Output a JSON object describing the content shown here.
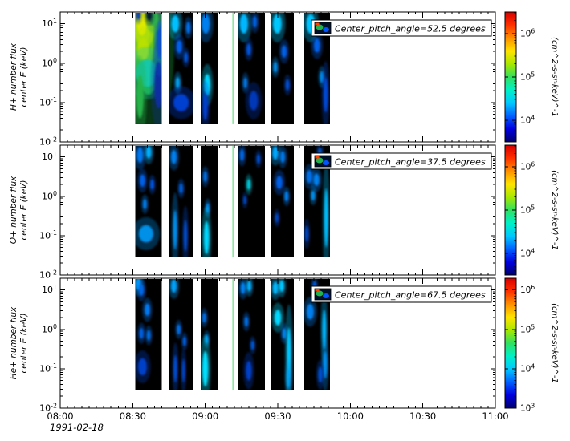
{
  "figure": {
    "background": "#ffffff",
    "date_label": "1991-02-18",
    "x_axis": {
      "range_minutes": [
        0,
        180
      ],
      "major_ticks": [
        {
          "t": 0,
          "label": "08:00"
        },
        {
          "t": 30,
          "label": "08:30"
        },
        {
          "t": 60,
          "label": "09:00"
        },
        {
          "t": 90,
          "label": "09:30"
        },
        {
          "t": 120,
          "label": "10:00"
        },
        {
          "t": 150,
          "label": "10:30"
        },
        {
          "t": 180,
          "label": "11:00"
        }
      ],
      "minor_tick_minutes": 3
    },
    "colorbar_gradient": [
      "#00006a",
      "#0000e0",
      "#0060ff",
      "#00c8ff",
      "#00f0c8",
      "#30e060",
      "#a8e800",
      "#ffe400",
      "#ff9000",
      "#ff3000",
      "#d80000"
    ],
    "legend_icon": {
      "bg": "#001028",
      "spots": [
        "#22b14c",
        "#0055ff",
        "#ff4000"
      ]
    },
    "frame_color": "#000000",
    "segment_log_energy_range": [
      -1.55,
      1.28
    ],
    "sliver_color": "#8ee6a1"
  },
  "chart_data": [
    {
      "type": "heatmap",
      "species": "H+",
      "ylabel_lines": [
        "H+ number flux",
        "center E (keV)"
      ],
      "legend_label": "Center_pitch_angle=52.5 degrees",
      "y_log_range": [
        -2,
        1.3
      ],
      "y_tick_exponents": [
        1,
        0,
        -1,
        -2
      ],
      "colorbar": {
        "label": "(cm^2-s-sr-keV)^-1",
        "tick_exponents": [
          6,
          5,
          4
        ],
        "log_range": [
          3.5,
          6.5
        ]
      },
      "segments_minutes": [
        [
          31,
          42
        ],
        [
          45.2,
          54.8
        ],
        [
          58.1,
          65.4
        ],
        [
          73.7,
          84.7
        ],
        [
          87.3,
          96.6
        ],
        [
          100.9,
          111.6
        ]
      ],
      "slivers_minutes": [
        [
          71.2,
          71.8
        ]
      ],
      "blobs": [
        {
          "t": 36.5,
          "logE": 0.35,
          "rt": 5.6,
          "rE": 1.15,
          "c": "#1fa83c"
        },
        {
          "t": 35.0,
          "logE": 0.85,
          "rt": 4.0,
          "rE": 0.45,
          "c": "#8cd41e"
        },
        {
          "t": 33.8,
          "logE": 1.0,
          "rt": 2.0,
          "rE": 0.3,
          "c": "#e0ea00"
        },
        {
          "t": 34.2,
          "logE": 0.35,
          "rt": 2.4,
          "rE": 0.3,
          "c": "#b8e000"
        },
        {
          "t": 35.8,
          "logE": -0.25,
          "rt": 4.6,
          "rE": 0.35,
          "c": "#16c8a8"
        },
        {
          "t": 33.0,
          "logE": -0.85,
          "rt": 1.5,
          "rE": 0.55,
          "c": "#28b24a"
        },
        {
          "t": 40.6,
          "logE": -0.55,
          "rt": 1.7,
          "rE": 0.6,
          "c": "#0a2fa0"
        },
        {
          "t": 41.0,
          "logE": 0.6,
          "rt": 1.2,
          "rE": 0.5,
          "c": "#0a50c8"
        },
        {
          "t": 38.6,
          "logE": 1.15,
          "rt": 1.8,
          "rE": 0.2,
          "c": "#2fae4e"
        },
        {
          "t": 36.8,
          "logE": 1.22,
          "rt": 1.1,
          "rE": 0.14,
          "c": "#03132e"
        },
        {
          "t": 32.4,
          "logE": 1.22,
          "rt": 0.8,
          "rE": 0.12,
          "c": "#0a3cb4"
        },
        {
          "t": 47.6,
          "logE": 1.0,
          "rt": 1.6,
          "rE": 0.22,
          "c": "#00c0ff"
        },
        {
          "t": 53.0,
          "logE": 0.9,
          "rt": 0.9,
          "rE": 0.15,
          "c": "#0070e8"
        },
        {
          "t": 49.2,
          "logE": 0.42,
          "rt": 1.2,
          "rE": 0.17,
          "c": "#0060e8"
        },
        {
          "t": 52.0,
          "logE": 0.15,
          "rt": 0.8,
          "rE": 0.13,
          "c": "#0055dd"
        },
        {
          "t": 48.6,
          "logE": -0.5,
          "rt": 0.9,
          "rE": 0.15,
          "c": "#00a0f0"
        },
        {
          "t": 50.0,
          "logE": -1.0,
          "rt": 3.2,
          "rE": 0.22,
          "c": "#0040d0"
        },
        {
          "t": 60.2,
          "logE": 1.0,
          "rt": 1.7,
          "rE": 0.25,
          "c": "#0080f0"
        },
        {
          "t": 60.8,
          "logE": -0.55,
          "rt": 1.3,
          "rE": 0.28,
          "c": "#00d8ff"
        },
        {
          "t": 60.0,
          "logE": -1.1,
          "rt": 1.0,
          "rE": 0.35,
          "c": "#0040d0"
        },
        {
          "t": 76.0,
          "logE": 1.0,
          "rt": 1.7,
          "rE": 0.25,
          "c": "#00b8ff"
        },
        {
          "t": 80.5,
          "logE": 1.05,
          "rt": 0.9,
          "rE": 0.15,
          "c": "#0060e0"
        },
        {
          "t": 78.0,
          "logE": 0.35,
          "rt": 0.9,
          "rE": 0.15,
          "c": "#0055dd"
        },
        {
          "t": 76.6,
          "logE": -0.5,
          "rt": 0.8,
          "rE": 0.14,
          "c": "#0078e8"
        },
        {
          "t": 80.0,
          "logE": -0.95,
          "rt": 1.8,
          "rE": 0.25,
          "c": "#0038b8"
        },
        {
          "t": 89.8,
          "logE": 1.0,
          "rt": 1.8,
          "rE": 0.25,
          "c": "#00c8ff"
        },
        {
          "t": 92.6,
          "logE": 0.3,
          "rt": 1.1,
          "rE": 0.16,
          "c": "#0060e8"
        },
        {
          "t": 89.0,
          "logE": -0.1,
          "rt": 0.8,
          "rE": 0.14,
          "c": "#0090f0"
        },
        {
          "t": 94.0,
          "logE": -0.55,
          "rt": 0.8,
          "rE": 0.14,
          "c": "#0050d8"
        },
        {
          "t": 103.6,
          "logE": 1.0,
          "rt": 1.8,
          "rE": 0.25,
          "c": "#00c4ff"
        },
        {
          "t": 106.2,
          "logE": 0.45,
          "rt": 1.3,
          "rE": 0.18,
          "c": "#0060e8"
        },
        {
          "t": 108.2,
          "logE": -0.35,
          "rt": 0.8,
          "rE": 0.15,
          "c": "#0090f0"
        },
        {
          "t": 109.8,
          "logE": -0.8,
          "rt": 0.9,
          "rE": 0.45,
          "c": "#0048d8"
        }
      ]
    },
    {
      "type": "heatmap",
      "species": "O+",
      "ylabel_lines": [
        "O+ number flux",
        "center E (keV)"
      ],
      "legend_label": "Center_pitch_angle=37.5 degrees",
      "y_log_range": [
        -2,
        1.3
      ],
      "y_tick_exponents": [
        1,
        0,
        -1,
        -2
      ],
      "colorbar": {
        "label": "(cm^2-s-sr-keV)^-1",
        "tick_exponents": [
          6,
          5,
          4
        ],
        "log_range": [
          3.5,
          6.5
        ]
      },
      "segments_minutes": [
        [
          31,
          42
        ],
        [
          45.2,
          54.8
        ],
        [
          58.1,
          65.4
        ],
        [
          73.7,
          84.7
        ],
        [
          87.3,
          96.6
        ],
        [
          100.9,
          111.6
        ]
      ],
      "slivers_minutes": [
        [
          71.2,
          71.8
        ]
      ],
      "blobs": [
        {
          "t": 33.0,
          "logE": 1.05,
          "rt": 1.3,
          "rE": 0.2,
          "c": "#0078f0"
        },
        {
          "t": 36.6,
          "logE": 1.12,
          "rt": 1.1,
          "rE": 0.16,
          "c": "#00b0ff"
        },
        {
          "t": 34.0,
          "logE": 0.4,
          "rt": 1.1,
          "rE": 0.16,
          "c": "#0060e8"
        },
        {
          "t": 38.0,
          "logE": 0.3,
          "rt": 0.8,
          "rE": 0.13,
          "c": "#0055dd"
        },
        {
          "t": 35.0,
          "logE": -0.2,
          "rt": 0.8,
          "rE": 0.13,
          "c": "#0080f0"
        },
        {
          "t": 35.5,
          "logE": -0.95,
          "rt": 3.0,
          "rE": 0.22,
          "c": "#0090e8"
        },
        {
          "t": 47.0,
          "logE": 1.0,
          "rt": 1.2,
          "rE": 0.18,
          "c": "#0080f0"
        },
        {
          "t": 50.0,
          "logE": 0.2,
          "rt": 0.8,
          "rE": 0.13,
          "c": "#0060e0"
        },
        {
          "t": 47.5,
          "logE": -0.85,
          "rt": 0.8,
          "rE": 0.5,
          "c": "#0090f0"
        },
        {
          "t": 51.8,
          "logE": -1.0,
          "rt": 0.7,
          "rE": 0.4,
          "c": "#0050d8"
        },
        {
          "t": 60.0,
          "logE": 0.5,
          "rt": 0.8,
          "rE": 0.14,
          "c": "#0070e8"
        },
        {
          "t": 61.0,
          "logE": -0.3,
          "rt": 0.7,
          "rE": 0.13,
          "c": "#0088f0"
        },
        {
          "t": 60.5,
          "logE": -1.05,
          "rt": 1.1,
          "rE": 0.42,
          "c": "#00d8ff"
        },
        {
          "t": 75.2,
          "logE": 1.05,
          "rt": 0.9,
          "rE": 0.15,
          "c": "#0068e8"
        },
        {
          "t": 78.0,
          "logE": 0.3,
          "rt": 0.8,
          "rE": 0.14,
          "c": "#00c8d8"
        },
        {
          "t": 82.0,
          "logE": 0.95,
          "rt": 0.7,
          "rE": 0.12,
          "c": "#0050d0"
        },
        {
          "t": 76.4,
          "logE": -0.1,
          "rt": 0.6,
          "rE": 0.11,
          "c": "#0048c8"
        },
        {
          "t": 89.0,
          "logE": 1.1,
          "rt": 1.2,
          "rE": 0.17,
          "c": "#00a8ff"
        },
        {
          "t": 92.0,
          "logE": 1.0,
          "rt": 1.0,
          "rE": 0.15,
          "c": "#0078e8"
        },
        {
          "t": 90.6,
          "logE": 0.35,
          "rt": 1.3,
          "rE": 0.17,
          "c": "#0060e8"
        },
        {
          "t": 93.6,
          "logE": 0.0,
          "rt": 0.8,
          "rE": 0.13,
          "c": "#0080f0"
        },
        {
          "t": 89.6,
          "logE": -0.55,
          "rt": 0.7,
          "rE": 0.12,
          "c": "#0048c8"
        },
        {
          "t": 103.0,
          "logE": 0.5,
          "rt": 1.2,
          "rE": 0.17,
          "c": "#0070e8"
        },
        {
          "t": 106.0,
          "logE": 0.42,
          "rt": 1.2,
          "rE": 0.16,
          "c": "#0080f0"
        },
        {
          "t": 104.6,
          "logE": 0.02,
          "rt": 0.8,
          "rE": 0.13,
          "c": "#0090f0"
        },
        {
          "t": 107.4,
          "logE": 1.1,
          "rt": 0.8,
          "rE": 0.13,
          "c": "#0058d8"
        },
        {
          "t": 110.0,
          "logE": -0.55,
          "rt": 0.8,
          "rE": 0.75,
          "c": "#00c0ff"
        },
        {
          "t": 102.0,
          "logE": -0.95,
          "rt": 0.7,
          "rE": 0.2,
          "c": "#0048c8"
        }
      ]
    },
    {
      "type": "heatmap",
      "species": "He+",
      "ylabel_lines": [
        "He+ number flux",
        "center E (keV)"
      ],
      "legend_label": "Center_pitch_angle=67.5 degrees",
      "y_log_range": [
        -2,
        1.3
      ],
      "y_tick_exponents": [
        1,
        0,
        -1,
        -2
      ],
      "colorbar": {
        "label": "(cm^2-s-sr-keV)^-1",
        "tick_exponents": [
          6,
          5,
          4,
          3
        ],
        "log_range": [
          3,
          6.3
        ]
      },
      "segments_minutes": [
        [
          31,
          42
        ],
        [
          45.2,
          54.8
        ],
        [
          58.1,
          65.4
        ],
        [
          73.7,
          84.7
        ],
        [
          87.3,
          96.6
        ],
        [
          100.9,
          111.6
        ]
      ],
      "slivers_minutes": [
        [
          71.2,
          71.8
        ]
      ],
      "blobs": [
        {
          "t": 32.4,
          "logE": 1.15,
          "rt": 1.1,
          "rE": 0.16,
          "c": "#00a0ff"
        },
        {
          "t": 33.6,
          "logE": 1.0,
          "rt": 1.0,
          "rE": 0.15,
          "c": "#0068e8"
        },
        {
          "t": 36.0,
          "logE": 0.5,
          "rt": 1.1,
          "rE": 0.16,
          "c": "#0078f0"
        },
        {
          "t": 33.6,
          "logE": -0.1,
          "rt": 0.9,
          "rE": 0.14,
          "c": "#0060e0"
        },
        {
          "t": 36.6,
          "logE": -0.15,
          "rt": 0.8,
          "rE": 0.13,
          "c": "#0070e8"
        },
        {
          "t": 34.0,
          "logE": -0.95,
          "rt": 1.8,
          "rE": 0.22,
          "c": "#0040c8"
        },
        {
          "t": 47.0,
          "logE": 1.1,
          "rt": 1.2,
          "rE": 0.17,
          "c": "#00a0f8"
        },
        {
          "t": 49.0,
          "logE": 0.0,
          "rt": 0.8,
          "rE": 0.13,
          "c": "#0070e8"
        },
        {
          "t": 51.4,
          "logE": -0.3,
          "rt": 0.7,
          "rE": 0.12,
          "c": "#0060e0"
        },
        {
          "t": 47.6,
          "logE": -1.0,
          "rt": 0.7,
          "rE": 0.35,
          "c": "#0050d8"
        },
        {
          "t": 51.0,
          "logE": -1.05,
          "rt": 0.6,
          "rE": 0.3,
          "c": "#0048d0"
        },
        {
          "t": 59.6,
          "logE": 0.3,
          "rt": 0.8,
          "rE": 0.13,
          "c": "#0070e8"
        },
        {
          "t": 60.6,
          "logE": -0.25,
          "rt": 0.7,
          "rE": 0.12,
          "c": "#0090f0"
        },
        {
          "t": 60.0,
          "logE": -1.0,
          "rt": 1.2,
          "rE": 0.45,
          "c": "#00e0ff"
        },
        {
          "t": 75.6,
          "logE": 1.05,
          "rt": 1.0,
          "rE": 0.15,
          "c": "#0080f0"
        },
        {
          "t": 78.2,
          "logE": 1.1,
          "rt": 0.9,
          "rE": 0.14,
          "c": "#00b0ff"
        },
        {
          "t": 77.0,
          "logE": 0.2,
          "rt": 0.8,
          "rE": 0.13,
          "c": "#0070e8"
        },
        {
          "t": 79.6,
          "logE": -0.4,
          "rt": 0.7,
          "rE": 0.12,
          "c": "#0058d8"
        },
        {
          "t": 78.0,
          "logE": -1.05,
          "rt": 1.2,
          "rE": 0.25,
          "c": "#0040c8"
        },
        {
          "t": 89.0,
          "logE": 1.05,
          "rt": 1.1,
          "rE": 0.16,
          "c": "#00b8ff"
        },
        {
          "t": 91.6,
          "logE": 1.1,
          "rt": 1.0,
          "rE": 0.15,
          "c": "#00c8ff"
        },
        {
          "t": 90.0,
          "logE": 0.3,
          "rt": 1.4,
          "rE": 0.2,
          "c": "#00d8ff"
        },
        {
          "t": 92.6,
          "logE": -0.1,
          "rt": 0.8,
          "rE": 0.14,
          "c": "#0080f0"
        },
        {
          "t": 94.6,
          "logE": -0.6,
          "rt": 0.9,
          "rE": 0.65,
          "c": "#00c8ff"
        },
        {
          "t": 94.4,
          "logE": -1.25,
          "rt": 0.8,
          "rE": 0.25,
          "c": "#00a0f0"
        },
        {
          "t": 103.4,
          "logE": 0.45,
          "rt": 1.5,
          "rE": 0.2,
          "c": "#0080f0"
        },
        {
          "t": 105.2,
          "logE": 1.1,
          "rt": 0.8,
          "rE": 0.13,
          "c": "#0058d8"
        },
        {
          "t": 109.2,
          "logE": 0.0,
          "rt": 0.8,
          "rE": 0.5,
          "c": "#00b8ff"
        },
        {
          "t": 109.6,
          "logE": -0.9,
          "rt": 0.8,
          "rE": 0.35,
          "c": "#0090f0"
        },
        {
          "t": 107.6,
          "logE": -1.15,
          "rt": 0.9,
          "rE": 0.2,
          "c": "#0050d0"
        }
      ]
    }
  ]
}
